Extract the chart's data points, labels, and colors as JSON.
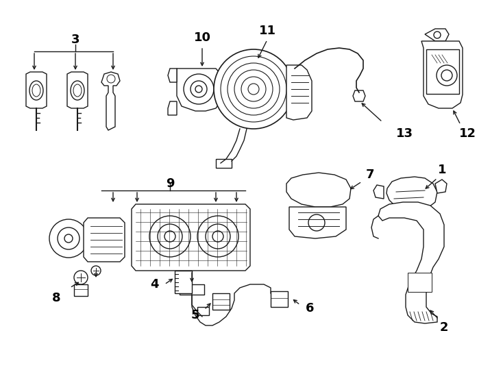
{
  "background": "#ffffff",
  "line_color": "#1a1a1a",
  "figsize": [
    7.34,
    5.4
  ],
  "dpi": 100,
  "components": {
    "label_fontsize": 13,
    "label_fontweight": "bold"
  }
}
